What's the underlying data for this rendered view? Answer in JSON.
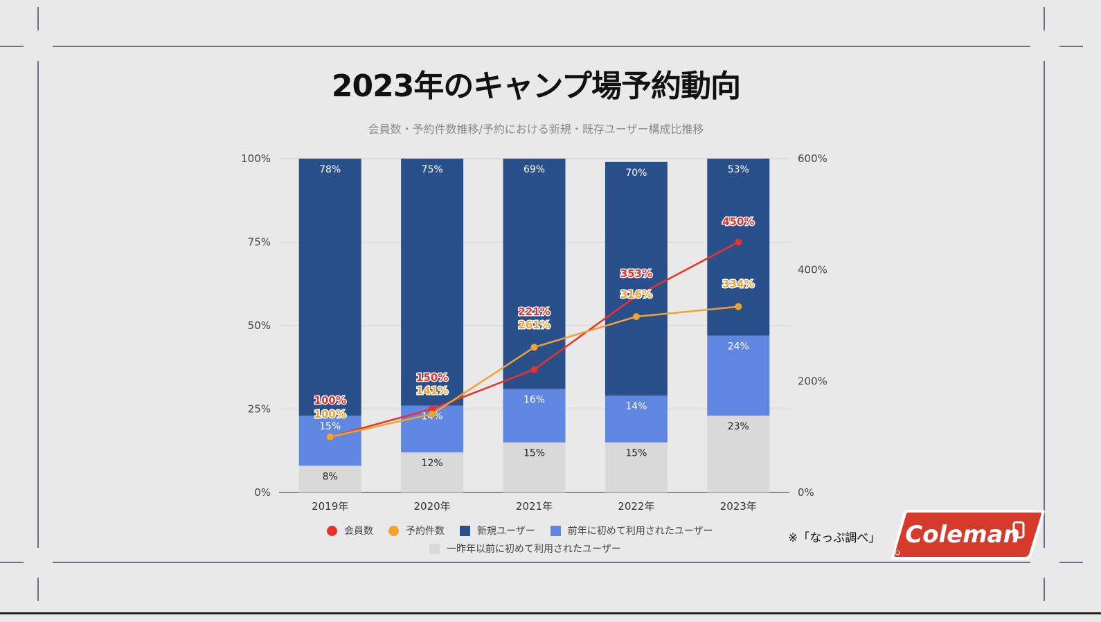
{
  "page": {
    "title": "2023年のキャンプ場予約動向",
    "subtitle": "会員数・予約件数推移/予約における新規・既存ユーザー構成比推移",
    "note": "※「なっぷ調べ」",
    "logo_text": "Coleman"
  },
  "colors": {
    "new_users": "#2a508c",
    "first_last_year": "#5f86e0",
    "before_last_year": "#d9d9d9",
    "members": "#e8322a",
    "bookings": "#f0a330",
    "logo_red": "#d63a2a"
  },
  "chart_data": {
    "type": "bar",
    "stacked": true,
    "categories": [
      "2019年",
      "2020年",
      "2021年",
      "2022年",
      "2023年"
    ],
    "series": [
      {
        "name": "一昨年以前に初めて利用されたユーザー",
        "type": "bar",
        "axis": "left",
        "values": [
          8,
          12,
          15,
          15,
          23
        ],
        "labels": [
          "8%",
          "12%",
          "15%",
          "15%",
          "23%"
        ]
      },
      {
        "name": "前年に初めて利用されたユーザー",
        "type": "bar",
        "axis": "left",
        "values": [
          15,
          14,
          16,
          14,
          24
        ],
        "labels": [
          "15%",
          "14%",
          "16%",
          "14%",
          "24%"
        ]
      },
      {
        "name": "新規ユーザー",
        "type": "bar",
        "axis": "left",
        "values": [
          78,
          75,
          69,
          70,
          53
        ],
        "labels": [
          "78%",
          "75%",
          "69%",
          "70%",
          "53%"
        ]
      },
      {
        "name": "会員数",
        "type": "line",
        "axis": "right",
        "values": [
          100,
          150,
          221,
          353,
          450
        ],
        "labels": [
          "100%",
          "150%",
          "221%",
          "353%",
          "450%"
        ]
      },
      {
        "name": "予約件数",
        "type": "line",
        "axis": "right",
        "values": [
          100,
          141,
          261,
          316,
          334
        ],
        "labels": [
          "100%",
          "141%",
          "261%",
          "316%",
          "334%"
        ]
      }
    ],
    "y_left": {
      "min": 0,
      "max": 100,
      "ticks": [
        "0%",
        "25%",
        "50%",
        "75%",
        "100%"
      ],
      "tick_values": [
        0,
        25,
        50,
        75,
        100
      ]
    },
    "y_right": {
      "min": 0,
      "max": 600,
      "ticks": [
        "0%",
        "200%",
        "400%",
        "600%"
      ],
      "tick_values": [
        0,
        200,
        400,
        600
      ]
    },
    "grid": true,
    "legend": {
      "position": "bottom",
      "row1": [
        {
          "label": "会員数",
          "marker": "circle",
          "color_key": "members"
        },
        {
          "label": "予約件数",
          "marker": "circle",
          "color_key": "bookings"
        },
        {
          "label": "新規ユーザー",
          "marker": "square",
          "color_key": "new_users"
        },
        {
          "label": "前年に初めて利用されたユーザー",
          "marker": "square",
          "color_key": "first_last_year"
        }
      ],
      "row2": [
        {
          "label": "一昨年以前に初めて利用されたユーザー",
          "marker": "square",
          "color_key": "before_last_year"
        }
      ]
    }
  }
}
